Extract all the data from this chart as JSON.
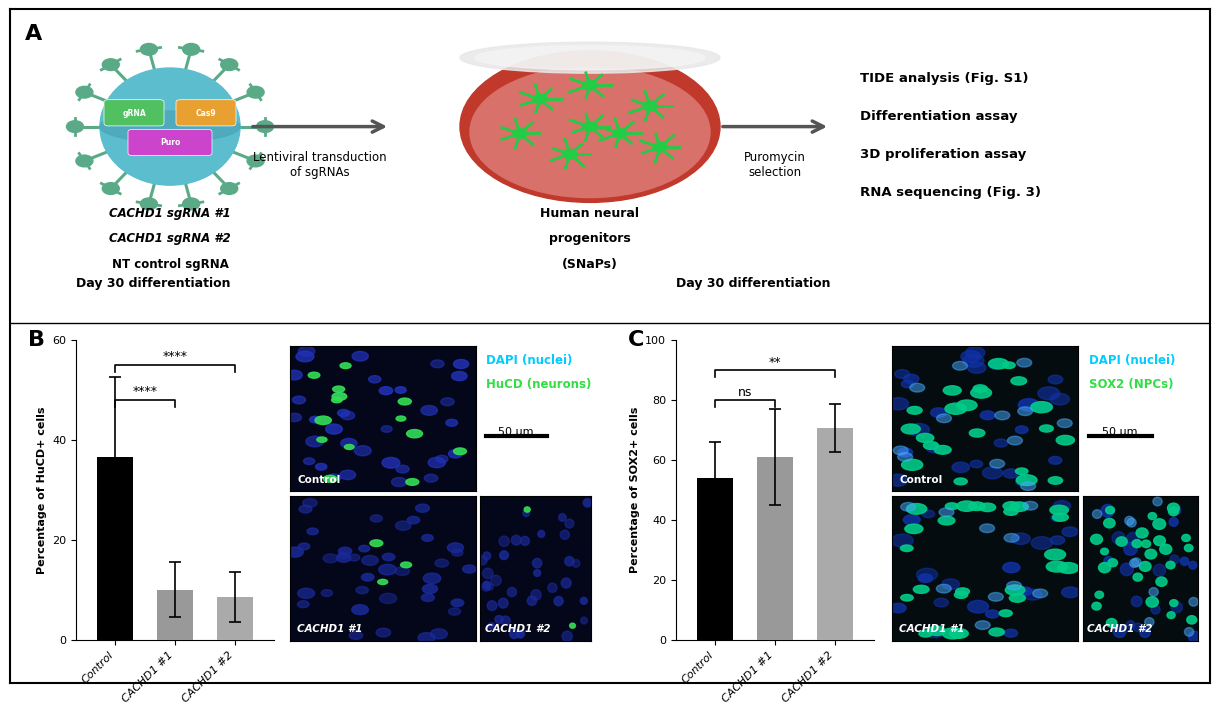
{
  "panel_A": {
    "sgRNA_labels": [
      "CACHD1 sgRNA #1",
      "CACHD1 sgRNA #2",
      "NT control sgRNA"
    ],
    "step1_label": "Lentiviral transduction\nof sgRNAs",
    "step2_label": "Human neural\nprogenitors\n(SNaPs)",
    "step3_label": "Puromycin\nselection",
    "output_labels": [
      "TIDE analysis (Fig. S1)",
      "Differentiation assay",
      "3D proliferation assay",
      "RNA sequencing (Fig. 3)"
    ]
  },
  "panel_B": {
    "title": "Day 30 differentiation",
    "categories": [
      "Control",
      "CACHD1 #1",
      "CACHD1 #2"
    ],
    "values": [
      36.5,
      10.0,
      8.5
    ],
    "errors": [
      16.0,
      5.5,
      5.0
    ],
    "bar_colors": [
      "#000000",
      "#999999",
      "#aaaaaa"
    ],
    "ylabel": "Percentage of HuCD+ cells",
    "ylim": [
      0,
      60
    ],
    "yticks": [
      0,
      20,
      40,
      60
    ],
    "legend_dapi": "DAPI (nuclei)",
    "legend_hucd": "HuCD (neurons)",
    "scale_bar": "50 μm"
  },
  "panel_C": {
    "title": "Day 30 differentiation",
    "categories": [
      "Control",
      "CACHD1 #1",
      "CACHD1 #2"
    ],
    "values": [
      54.0,
      61.0,
      70.5
    ],
    "errors": [
      12.0,
      16.0,
      8.0
    ],
    "bar_colors": [
      "#000000",
      "#999999",
      "#aaaaaa"
    ],
    "ylabel": "Percentage of SOX2+ cells",
    "ylim": [
      0,
      100
    ],
    "yticks": [
      0,
      20,
      40,
      60,
      80,
      100
    ],
    "legend_dapi": "DAPI (nuclei)",
    "legend_sox2": "SOX2 (NPCs)",
    "scale_bar": "50 μm"
  },
  "background_color": "#ffffff",
  "border_color": "#000000"
}
